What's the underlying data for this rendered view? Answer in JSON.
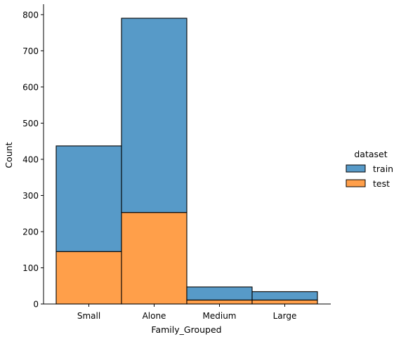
{
  "chart_data": {
    "type": "bar",
    "stacked": true,
    "categories": [
      "Small",
      "Alone",
      "Medium",
      "Large"
    ],
    "series": [
      {
        "name": "test",
        "values": [
          145,
          253,
          11,
          11
        ],
        "color": "#ff9f4a"
      },
      {
        "name": "train",
        "values": [
          292,
          537,
          36,
          23
        ],
        "color": "#579ac8"
      }
    ],
    "totals": [
      437,
      790,
      47,
      34
    ],
    "xlabel": "Family_Grouped",
    "ylabel": "Count",
    "ylim": [
      0,
      830
    ],
    "yticks": [
      0,
      100,
      200,
      300,
      400,
      500,
      600,
      700,
      800
    ],
    "grid": false,
    "legend": {
      "title": "dataset",
      "position": "right",
      "entries": [
        "train",
        "test"
      ]
    }
  }
}
